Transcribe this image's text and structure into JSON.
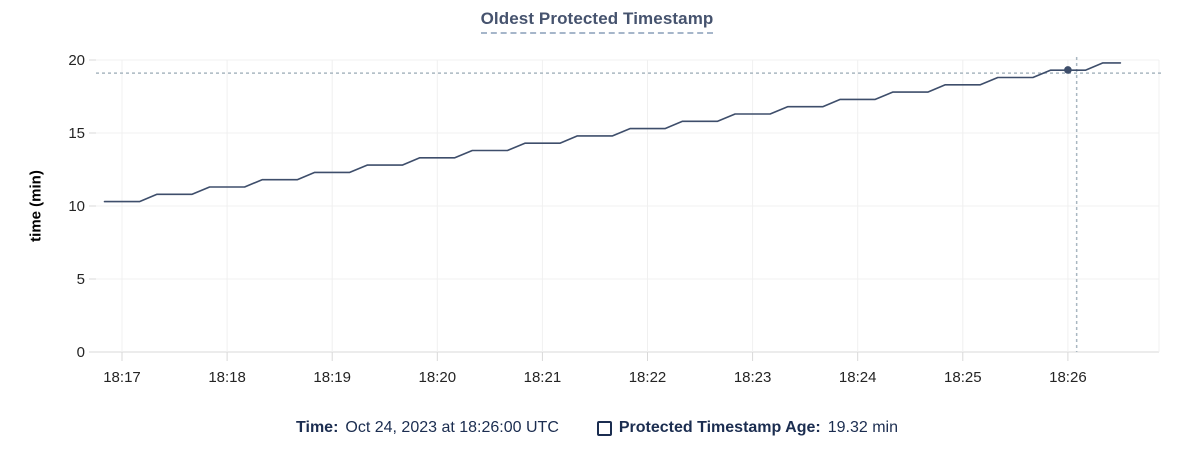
{
  "title": {
    "text": "Oldest Protected Timestamp"
  },
  "chart_data": {
    "type": "line",
    "title": "Oldest Protected Timestamp",
    "xlabel": "",
    "ylabel": "time (min)",
    "ylim": [
      0,
      20
    ],
    "y_ticks": [
      0,
      5,
      10,
      15,
      20
    ],
    "x_ticks": [
      "18:17",
      "18:18",
      "18:19",
      "18:20",
      "18:21",
      "18:22",
      "18:23",
      "18:24",
      "18:25",
      "18:26"
    ],
    "grid": true,
    "legend_position": "bottom",
    "series": [
      {
        "name": "Protected Timestamp Age",
        "unit": "min",
        "points": [
          [
            "18:16:50",
            10.3
          ],
          [
            "18:17:10",
            10.3
          ],
          [
            "18:17:20",
            10.8
          ],
          [
            "18:17:40",
            10.8
          ],
          [
            "18:17:50",
            11.3
          ],
          [
            "18:18:10",
            11.3
          ],
          [
            "18:18:20",
            11.8
          ],
          [
            "18:18:40",
            11.8
          ],
          [
            "18:18:50",
            12.3
          ],
          [
            "18:19:10",
            12.3
          ],
          [
            "18:19:20",
            12.8
          ],
          [
            "18:19:40",
            12.8
          ],
          [
            "18:19:50",
            13.3
          ],
          [
            "18:20:10",
            13.3
          ],
          [
            "18:20:20",
            13.8
          ],
          [
            "18:20:40",
            13.8
          ],
          [
            "18:20:50",
            14.3
          ],
          [
            "18:21:10",
            14.3
          ],
          [
            "18:21:20",
            14.8
          ],
          [
            "18:21:40",
            14.8
          ],
          [
            "18:21:50",
            15.3
          ],
          [
            "18:22:10",
            15.3
          ],
          [
            "18:22:20",
            15.8
          ],
          [
            "18:22:40",
            15.8
          ],
          [
            "18:22:50",
            16.3
          ],
          [
            "18:23:10",
            16.3
          ],
          [
            "18:23:20",
            16.8
          ],
          [
            "18:23:40",
            16.8
          ],
          [
            "18:23:50",
            17.3
          ],
          [
            "18:24:10",
            17.3
          ],
          [
            "18:24:20",
            17.8
          ],
          [
            "18:24:40",
            17.8
          ],
          [
            "18:24:50",
            18.3
          ],
          [
            "18:25:10",
            18.3
          ],
          [
            "18:25:20",
            18.8
          ],
          [
            "18:25:40",
            18.8
          ],
          [
            "18:25:50",
            19.3
          ],
          [
            "18:26:10",
            19.3
          ],
          [
            "18:26:20",
            19.8
          ],
          [
            "18:26:30",
            19.8
          ]
        ]
      }
    ],
    "highlight_point": {
      "time": "18:26:00",
      "value": 19.32
    },
    "crosshair": {
      "time": "18:26:05",
      "value": 19.1
    }
  },
  "footer": {
    "time_label": "Time:",
    "time_value": "Oct 24, 2023 at 18:26:00 UTC",
    "series_label": "Protected Timestamp Age:",
    "series_value": "19.32 min"
  },
  "colors": {
    "line": "#3e4e6b",
    "title_text": "#46536e",
    "footer_text": "#1b2d50",
    "crosshair": "#a9b7c1",
    "gridline": "#f0f0f0",
    "axis_line": "#d9d9d9"
  }
}
